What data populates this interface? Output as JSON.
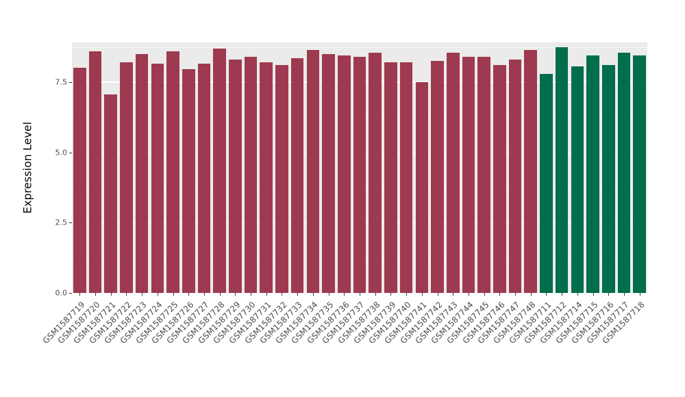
{
  "chart_data": {
    "type": "bar",
    "title": "",
    "xlabel": "",
    "ylabel": "Expression Level",
    "ylim": [
      0,
      8.91
    ],
    "yticks": [
      0,
      2.5,
      5.0,
      7.5
    ],
    "ytick_labels": [
      "0.0",
      "2.5",
      "5.0",
      "7.5"
    ],
    "minor_gridlines": [
      1.25,
      3.75,
      6.25,
      8.75
    ],
    "grid": true,
    "legend_position": "none",
    "panel_bg": "#EBEBEB",
    "grid_color": "#FFFFFF",
    "categories": [
      "GSM1587719",
      "GSM1587720",
      "GSM1587721",
      "GSM1587722",
      "GSM1587723",
      "GSM1587724",
      "GSM1587725",
      "GSM1587726",
      "GSM1587727",
      "GSM1587728",
      "GSM1587729",
      "GSM1587730",
      "GSM1587731",
      "GSM1587732",
      "GSM1587733",
      "GSM1587734",
      "GSM1587735",
      "GSM1587736",
      "GSM1587737",
      "GSM1587738",
      "GSM1587739",
      "GSM1587740",
      "GSM1587741",
      "GSM1587742",
      "GSM1587743",
      "GSM1587744",
      "GSM1587745",
      "GSM1587746",
      "GSM1587747",
      "GSM1587748",
      "GSM1587711",
      "GSM1587712",
      "GSM1587714",
      "GSM1587715",
      "GSM1587716",
      "GSM1587717",
      "GSM1587718"
    ],
    "values": [
      8.0,
      8.6,
      7.05,
      8.2,
      8.5,
      8.15,
      8.6,
      7.95,
      8.15,
      8.7,
      8.3,
      8.4,
      8.2,
      8.1,
      8.35,
      8.65,
      8.5,
      8.45,
      8.4,
      8.55,
      8.2,
      8.2,
      7.5,
      8.25,
      8.55,
      8.4,
      8.4,
      8.1,
      8.3,
      8.65,
      7.8,
      8.75,
      8.05,
      8.45,
      8.1,
      8.55,
      8.45
    ],
    "groups": [
      "groupA",
      "groupA",
      "groupA",
      "groupA",
      "groupA",
      "groupA",
      "groupA",
      "groupA",
      "groupA",
      "groupA",
      "groupA",
      "groupA",
      "groupA",
      "groupA",
      "groupA",
      "groupA",
      "groupA",
      "groupA",
      "groupA",
      "groupA",
      "groupA",
      "groupA",
      "groupA",
      "groupA",
      "groupA",
      "groupA",
      "groupA",
      "groupA",
      "groupA",
      "groupA",
      "groupB",
      "groupB",
      "groupB",
      "groupB",
      "groupB",
      "groupB",
      "groupB"
    ],
    "group_colors": {
      "groupA": "#9E3A4F",
      "groupB": "#006D4C"
    }
  }
}
